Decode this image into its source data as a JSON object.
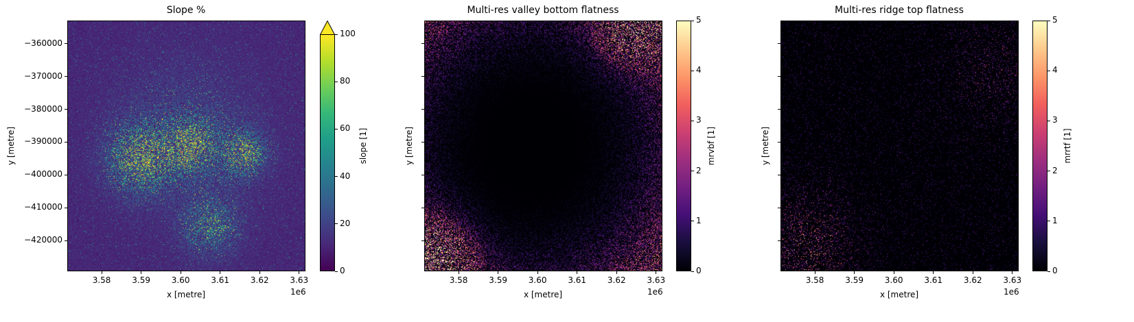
{
  "chart_data": [
    {
      "type": "heatmap",
      "title": "Slope %",
      "xlabel": "x [metre]",
      "ylabel": "y [metre]",
      "x_offset_label": "1e6",
      "xlim": [
        3.5713,
        3.6316
      ],
      "ylim": [
        -429400,
        -352900
      ],
      "xticks": [
        3.58,
        3.59,
        3.6,
        3.61,
        3.62,
        3.63
      ],
      "xticklabels": [
        "3.58",
        "3.59",
        "3.60",
        "3.61",
        "3.62",
        "3.63"
      ],
      "yticks": [
        -360000,
        -370000,
        -380000,
        -390000,
        -400000,
        -410000,
        -420000
      ],
      "yticklabels": [
        "−360000",
        "−370000",
        "−380000",
        "−390000",
        "−400000",
        "−410000",
        "−420000"
      ],
      "show_yticklabels": true,
      "colormap": "viridis",
      "colormap_stops": [
        "#440154",
        "#482878",
        "#3e4989",
        "#31688e",
        "#26828e",
        "#1f9e89",
        "#35b779",
        "#6ece58",
        "#b5de2b",
        "#fde725"
      ],
      "colorbar": {
        "label": "slope [1]",
        "range": [
          0,
          100
        ],
        "ticks": [
          0,
          20,
          40,
          60,
          80,
          100
        ],
        "ticklabels": [
          "0",
          "20",
          "40",
          "60",
          "80",
          "100"
        ],
        "extend": "max"
      }
    },
    {
      "type": "heatmap",
      "title": "Multi-res valley bottom flatness",
      "xlabel": "x [metre]",
      "ylabel": "y [metre]",
      "x_offset_label": "1e6",
      "xlim": [
        3.5713,
        3.6316
      ],
      "ylim": [
        -429400,
        -352900
      ],
      "xticks": [
        3.58,
        3.59,
        3.6,
        3.61,
        3.62,
        3.63
      ],
      "xticklabels": [
        "3.58",
        "3.59",
        "3.60",
        "3.61",
        "3.62",
        "3.63"
      ],
      "yticks": [
        -360000,
        -370000,
        -380000,
        -390000,
        -400000,
        -410000,
        -420000
      ],
      "yticklabels": [],
      "show_yticklabels": false,
      "colormap": "magma",
      "colormap_stops": [
        "#000004",
        "#180f3d",
        "#440f76",
        "#721f81",
        "#9e2f7f",
        "#cd4071",
        "#f1605d",
        "#fd9668",
        "#feca8d",
        "#fcfdbf"
      ],
      "colorbar": {
        "label": "mrvbf [1]",
        "range": [
          0,
          5
        ],
        "ticks": [
          0,
          1,
          2,
          3,
          4,
          5
        ],
        "ticklabels": [
          "0",
          "1",
          "2",
          "3",
          "4",
          "5"
        ],
        "extend": "neither"
      }
    },
    {
      "type": "heatmap",
      "title": "Multi-res ridge top flatness",
      "xlabel": "x [metre]",
      "ylabel": "y [metre]",
      "x_offset_label": "1e6",
      "xlim": [
        3.5713,
        3.6316
      ],
      "ylim": [
        -429400,
        -352900
      ],
      "xticks": [
        3.58,
        3.59,
        3.6,
        3.61,
        3.62,
        3.63
      ],
      "xticklabels": [
        "3.58",
        "3.59",
        "3.60",
        "3.61",
        "3.62",
        "3.63"
      ],
      "yticks": [
        -360000,
        -370000,
        -380000,
        -390000,
        -400000,
        -410000,
        -420000
      ],
      "yticklabels": [],
      "show_yticklabels": false,
      "colormap": "magma",
      "colormap_stops": [
        "#000004",
        "#180f3d",
        "#440f76",
        "#721f81",
        "#9e2f7f",
        "#cd4071",
        "#f1605d",
        "#fd9668",
        "#feca8d",
        "#fcfdbf"
      ],
      "colorbar": {
        "label": "mrrtf [1]",
        "range": [
          0,
          5
        ],
        "ticks": [
          0,
          1,
          2,
          3,
          4,
          5
        ],
        "ticklabels": [
          "0",
          "1",
          "2",
          "3",
          "4",
          "5"
        ],
        "extend": "neither"
      }
    }
  ]
}
